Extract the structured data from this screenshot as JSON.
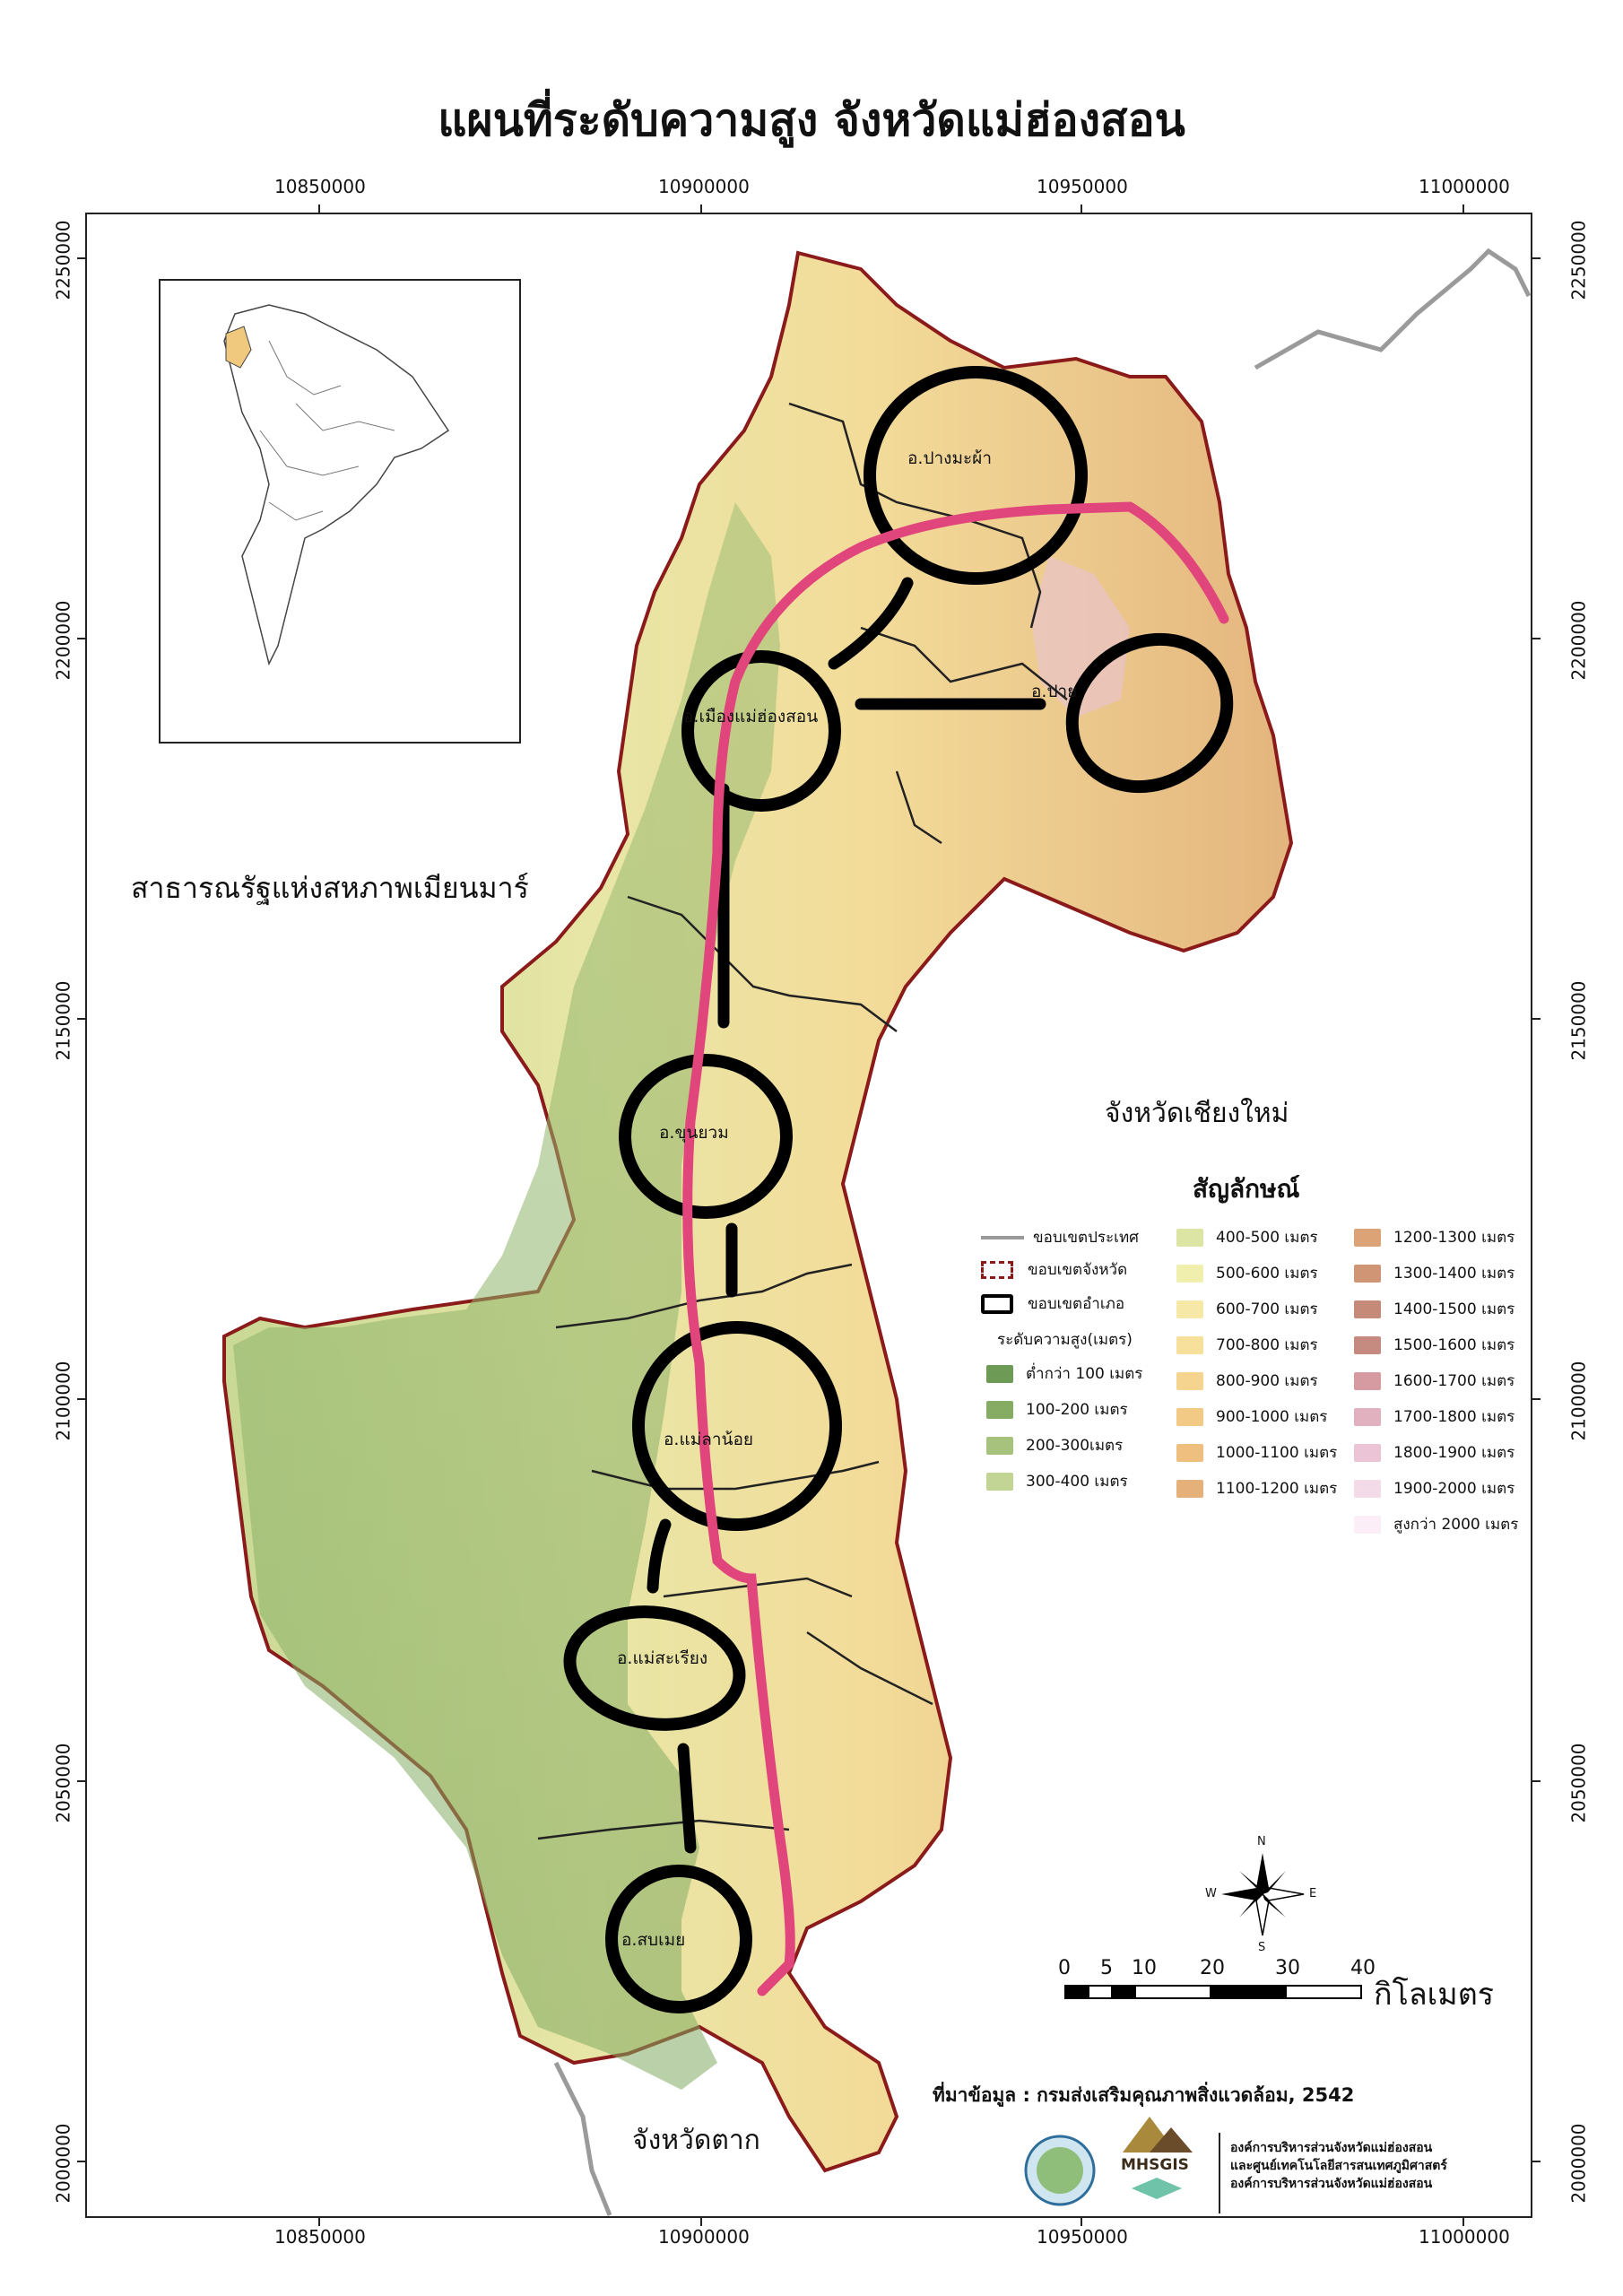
{
  "map_title": "แผนที่ระดับความสูง  จังหวัดแม่ฮ่องสอน",
  "coords": {
    "x_ticks": [
      "10850000",
      "10900000",
      "10950000",
      "11000000"
    ],
    "y_ticks": [
      "2250000",
      "2200000",
      "2150000",
      "2100000",
      "2050000",
      "2000000"
    ]
  },
  "regions": {
    "myanmar": "สาธารณรัฐแห่งสหภาพเมียนมาร์",
    "chiang_mai": "จังหวัดเชียงใหม่",
    "tak": "จังหวัดตาก"
  },
  "districts": [
    {
      "label": "อ.ปางมะผ้า"
    },
    {
      "label": "อ.ปาย"
    },
    {
      "label": "อ.เมืองแม่ฮ่องสอน"
    },
    {
      "label": "อ.ขุนยวม"
    },
    {
      "label": "อ.แม่ลาน้อย"
    },
    {
      "label": "อ.แม่สะเรียง"
    },
    {
      "label": "อ.สบเมย"
    }
  ],
  "legend": {
    "title": "สัญลักษณ์",
    "boundaries": [
      {
        "label": "ขอบเขตประเทศ"
      },
      {
        "label": "ขอบเขตจังหวัด"
      },
      {
        "label": "ขอบเขตอำเภอ"
      }
    ],
    "elevation_header": "ระดับความสูง(เมตร)",
    "elevation": [
      {
        "label": "ต่ำกว่า 100 เมตร",
        "color": "#6d9a55"
      },
      {
        "label": "100-200 เมตร",
        "color": "#86ac64"
      },
      {
        "label": "200-300เมตร",
        "color": "#a6c27c"
      },
      {
        "label": "300-400 เมตร",
        "color": "#c3d594"
      },
      {
        "label": "400-500 เมตร",
        "color": "#dce5a4"
      },
      {
        "label": "500-600 เมตร",
        "color": "#f0efae"
      },
      {
        "label": "600-700 เมตร",
        "color": "#f6e9a8"
      },
      {
        "label": "700-800 เมตร",
        "color": "#f7df9c"
      },
      {
        "label": "800-900 เมตร",
        "color": "#f4d48e"
      },
      {
        "label": "900-1000 เมตร",
        "color": "#f2c985"
      },
      {
        "label": "1000-1100 เมตร",
        "color": "#efbf80"
      },
      {
        "label": "1100-1200 เมตร",
        "color": "#e6b07a"
      },
      {
        "label": "1200-1300 เมตร",
        "color": "#dca377"
      },
      {
        "label": "1300-1400 เมตร",
        "color": "#d09575"
      },
      {
        "label": "1400-1500 เมตร",
        "color": "#c58b78"
      },
      {
        "label": "1500-1600 เมตร",
        "color": "#c58b80"
      },
      {
        "label": "1600-1700 เมตร",
        "color": "#d59ba0"
      },
      {
        "label": "1700-1800 เมตร",
        "color": "#e2b1c0"
      },
      {
        "label": "1800-1900 เมตร",
        "color": "#ebc5d6"
      },
      {
        "label": "1900-2000 เมตร",
        "color": "#f3dbe8"
      },
      {
        "label": "สูงกว่า 2000 เมตร",
        "color": "#fbeef6"
      }
    ]
  },
  "scale": {
    "ticks": [
      "0",
      "5",
      "10",
      "20",
      "30",
      "40"
    ],
    "unit": "กิโลเมตร"
  },
  "compass": {
    "n": "N",
    "s": "S",
    "e": "E",
    "w": "W"
  },
  "source": "ที่มาข้อมูล : กรมส่งเสริมคุณภาพสิ่งแวดล้อม, 2542",
  "logo_text": "MHSGIS",
  "org_lines": [
    "องค์การบริหารส่วนจังหวัดแม่ฮ่องสอน",
    "และศูนย์เทคโนโลยีสารสนเทศภูมิศาสตร์",
    "องค์การบริหารส่วนจังหวัดแม่ฮ่องสอน"
  ],
  "colors": {
    "annotation": "#000000",
    "route": "#e0457b",
    "province_border": "#8b1a1a",
    "country_border": "#999999"
  }
}
